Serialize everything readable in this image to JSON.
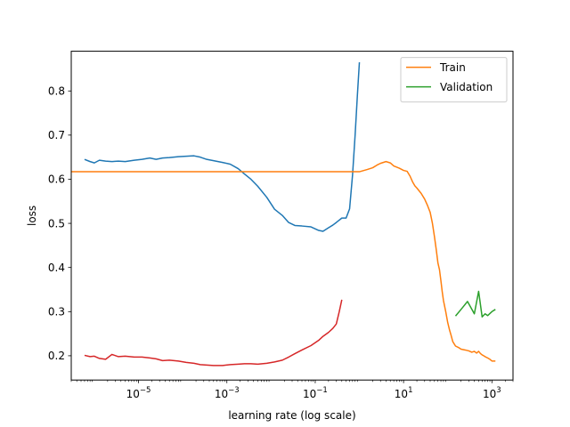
{
  "chart_data": {
    "type": "line",
    "title": "",
    "xlabel": "learning rate (log scale)",
    "ylabel": "loss",
    "xscale": "log",
    "xlim": [
      3e-07,
      3000
    ],
    "ylim": [
      0.145,
      0.89
    ],
    "grid": false,
    "legend_position": "top-right",
    "x_ticks": [
      {
        "value": 1e-05,
        "base": "10",
        "exp": "−5"
      },
      {
        "value": 0.001,
        "base": "10",
        "exp": "−3"
      },
      {
        "value": 0.1,
        "base": "10",
        "exp": "−1"
      },
      {
        "value": 10,
        "base": "10",
        "exp": "1"
      },
      {
        "value": 1000,
        "base": "10",
        "exp": "3"
      }
    ],
    "y_ticks": [
      "0.2",
      "0.3",
      "0.4",
      "0.5",
      "0.6",
      "0.7",
      "0.8"
    ],
    "series": [
      {
        "name": "",
        "color": "#1f77b4",
        "x": [
          6e-07,
          8e-07,
          1e-06,
          1.3e-06,
          1.8e-06,
          2.5e-06,
          3.5e-06,
          5e-06,
          8e-06,
          1.2e-05,
          1.8e-05,
          2.5e-05,
          3.5e-05,
          5e-05,
          8e-05,
          0.00012,
          0.00018,
          0.00025,
          0.00035,
          0.0005,
          0.0008,
          0.0012,
          0.0018,
          0.0025,
          0.0035,
          0.005,
          0.008,
          0.012,
          0.018,
          0.025,
          0.035,
          0.05,
          0.08,
          0.12,
          0.15,
          0.2,
          0.25,
          0.3,
          0.4,
          0.5,
          0.6,
          0.7,
          0.8,
          0.9,
          1.0
        ],
        "y": [
          0.645,
          0.64,
          0.637,
          0.643,
          0.641,
          0.64,
          0.641,
          0.64,
          0.643,
          0.645,
          0.648,
          0.645,
          0.648,
          0.649,
          0.651,
          0.652,
          0.653,
          0.65,
          0.645,
          0.642,
          0.638,
          0.634,
          0.624,
          0.612,
          0.6,
          0.584,
          0.559,
          0.532,
          0.518,
          0.502,
          0.495,
          0.494,
          0.492,
          0.484,
          0.482,
          0.49,
          0.496,
          0.502,
          0.512,
          0.512,
          0.533,
          0.61,
          0.7,
          0.79,
          0.865
        ]
      },
      {
        "name": "Train",
        "color": "#ff7f0e",
        "x": [
          3e-07,
          1.0,
          1.5,
          2.0,
          2.5,
          3.0,
          4.0,
          5.0,
          6.0,
          8.0,
          10,
          12,
          14,
          16,
          18,
          20,
          25,
          30,
          35,
          40,
          45,
          50,
          55,
          60,
          65,
          70,
          75,
          80,
          90,
          100,
          110,
          120,
          130,
          150,
          180,
          200,
          250,
          300,
          350,
          400,
          450,
          500,
          550,
          600,
          650,
          700,
          800,
          900,
          1000,
          1200
        ],
        "y": [
          0.617,
          0.617,
          0.622,
          0.626,
          0.632,
          0.636,
          0.64,
          0.637,
          0.63,
          0.625,
          0.62,
          0.618,
          0.607,
          0.594,
          0.585,
          0.58,
          0.568,
          0.555,
          0.54,
          0.525,
          0.5,
          0.47,
          0.44,
          0.41,
          0.395,
          0.37,
          0.345,
          0.325,
          0.3,
          0.275,
          0.258,
          0.245,
          0.232,
          0.222,
          0.218,
          0.215,
          0.213,
          0.211,
          0.208,
          0.21,
          0.206,
          0.21,
          0.205,
          0.202,
          0.2,
          0.198,
          0.195,
          0.192,
          0.188,
          0.188
        ]
      },
      {
        "name": "Validation",
        "color": "#2ca02c",
        "x": [
          150,
          200,
          280,
          400,
          500,
          600,
          700,
          800,
          1000,
          1200
        ],
        "y": [
          0.29,
          0.305,
          0.323,
          0.295,
          0.346,
          0.288,
          0.295,
          0.291,
          0.3,
          0.305
        ]
      },
      {
        "name": "",
        "color": "#d62728",
        "x": [
          6e-07,
          8e-07,
          1e-06,
          1.3e-06,
          1.8e-06,
          2.5e-06,
          3.5e-06,
          5e-06,
          8e-06,
          1.2e-05,
          1.8e-05,
          2.5e-05,
          3.5e-05,
          5e-05,
          8e-05,
          0.00012,
          0.00018,
          0.00025,
          0.00035,
          0.0005,
          0.0008,
          0.0012,
          0.0018,
          0.0025,
          0.0035,
          0.005,
          0.008,
          0.012,
          0.018,
          0.025,
          0.035,
          0.05,
          0.08,
          0.12,
          0.15,
          0.2,
          0.25,
          0.3,
          0.35,
          0.4
        ],
        "y": [
          0.201,
          0.198,
          0.199,
          0.194,
          0.192,
          0.203,
          0.198,
          0.199,
          0.197,
          0.197,
          0.195,
          0.193,
          0.189,
          0.19,
          0.188,
          0.185,
          0.183,
          0.18,
          0.179,
          0.178,
          0.178,
          0.18,
          0.181,
          0.182,
          0.182,
          0.181,
          0.183,
          0.186,
          0.19,
          0.197,
          0.205,
          0.213,
          0.223,
          0.235,
          0.244,
          0.253,
          0.262,
          0.272,
          0.3,
          0.327
        ]
      }
    ]
  }
}
